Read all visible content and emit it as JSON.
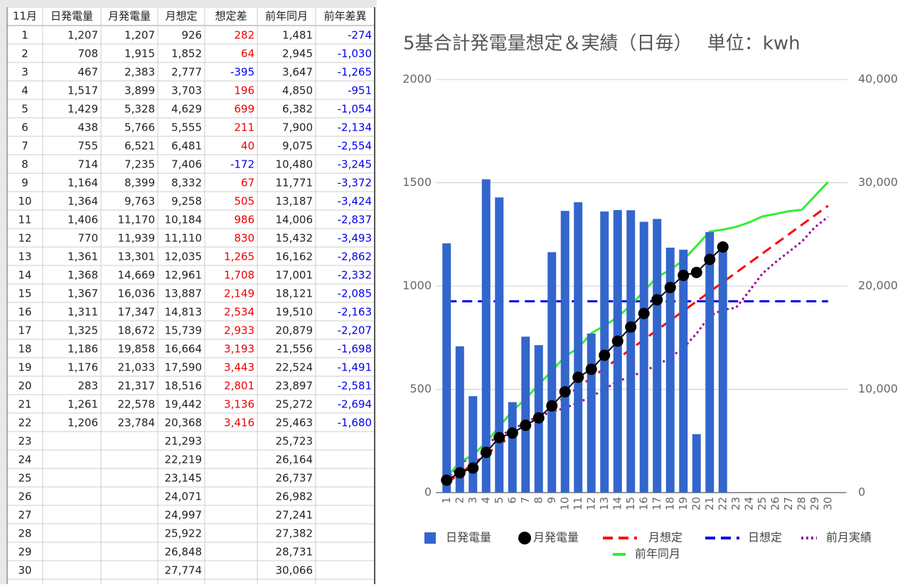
{
  "table": {
    "header": [
      "11月",
      "日発電量",
      "月発電量",
      "月想定",
      "想定差",
      "前年同月",
      "前年差異"
    ],
    "rows": [
      [
        "1",
        "1,207",
        "1,207",
        "926",
        "282",
        "1,481",
        "-274"
      ],
      [
        "2",
        "708",
        "1,915",
        "1,852",
        "64",
        "2,945",
        "-1,030"
      ],
      [
        "3",
        "467",
        "2,383",
        "2,777",
        "-395",
        "3,647",
        "-1,265"
      ],
      [
        "4",
        "1,517",
        "3,899",
        "3,703",
        "196",
        "4,850",
        "-951"
      ],
      [
        "5",
        "1,429",
        "5,328",
        "4,629",
        "699",
        "6,382",
        "-1,054"
      ],
      [
        "6",
        "438",
        "5,766",
        "5,555",
        "211",
        "7,900",
        "-2,134"
      ],
      [
        "7",
        "755",
        "6,521",
        "6,481",
        "40",
        "9,075",
        "-2,554"
      ],
      [
        "8",
        "714",
        "7,235",
        "7,406",
        "-172",
        "10,480",
        "-3,245"
      ],
      [
        "9",
        "1,164",
        "8,399",
        "8,332",
        "67",
        "11,771",
        "-3,372"
      ],
      [
        "10",
        "1,364",
        "9,763",
        "9,258",
        "505",
        "13,187",
        "-3,424"
      ],
      [
        "11",
        "1,406",
        "11,170",
        "10,184",
        "986",
        "14,006",
        "-2,837"
      ],
      [
        "12",
        "770",
        "11,939",
        "11,110",
        "830",
        "15,432",
        "-3,493"
      ],
      [
        "13",
        "1,361",
        "13,301",
        "12,035",
        "1,265",
        "16,162",
        "-2,862"
      ],
      [
        "14",
        "1,368",
        "14,669",
        "12,961",
        "1,708",
        "17,001",
        "-2,332"
      ],
      [
        "15",
        "1,367",
        "16,036",
        "13,887",
        "2,149",
        "18,121",
        "-2,085"
      ],
      [
        "16",
        "1,311",
        "17,347",
        "14,813",
        "2,534",
        "19,510",
        "-2,163"
      ],
      [
        "17",
        "1,325",
        "18,672",
        "15,739",
        "2,933",
        "20,879",
        "-2,207"
      ],
      [
        "18",
        "1,186",
        "19,858",
        "16,664",
        "3,193",
        "21,556",
        "-1,698"
      ],
      [
        "19",
        "1,176",
        "21,033",
        "17,590",
        "3,443",
        "22,524",
        "-1,491"
      ],
      [
        "20",
        "283",
        "21,317",
        "18,516",
        "2,801",
        "23,897",
        "-2,581"
      ],
      [
        "21",
        "1,261",
        "22,578",
        "19,442",
        "3,136",
        "25,272",
        "-2,694"
      ],
      [
        "22",
        "1,206",
        "23,784",
        "20,368",
        "3,416",
        "25,463",
        "-1,680"
      ],
      [
        "23",
        null,
        null,
        "21,293",
        null,
        "25,723",
        null
      ],
      [
        "24",
        null,
        null,
        "22,219",
        null,
        "26,164",
        null
      ],
      [
        "25",
        null,
        null,
        "23,145",
        null,
        "26,737",
        null
      ],
      [
        "26",
        null,
        null,
        "24,071",
        null,
        "26,982",
        null
      ],
      [
        "27",
        null,
        null,
        "24,997",
        null,
        "27,241",
        null
      ],
      [
        "28",
        null,
        null,
        "25,922",
        null,
        "27,382",
        null
      ],
      [
        "29",
        null,
        null,
        "26,848",
        null,
        "28,731",
        null
      ],
      [
        "30",
        null,
        null,
        "27,774",
        null,
        "30,066",
        null
      ]
    ]
  },
  "chart_data": {
    "type": "combo",
    "title": "5基合計発電量想定＆実績（日毎）　 単位：kwh",
    "categories": [
      "1",
      "2",
      "3",
      "4",
      "5",
      "6",
      "7",
      "8",
      "9",
      "10",
      "11",
      "12",
      "13",
      "14",
      "15",
      "16",
      "17",
      "18",
      "19",
      "20",
      "21",
      "22",
      "23",
      "24",
      "25",
      "26",
      "27",
      "28",
      "29",
      "30"
    ],
    "ylim": [
      0,
      2000
    ],
    "yticks": [
      0,
      500,
      1000,
      1500,
      2000
    ],
    "y2lim": [
      0,
      40000
    ],
    "y2ticks": [
      0,
      {
        "value": 10000,
        "label": "10,000"
      },
      {
        "value": 20000,
        "label": "20,000"
      },
      {
        "value": 30000,
        "label": "30,000"
      },
      {
        "value": 40000,
        "label": "40,000"
      }
    ],
    "grid": true,
    "legend": "bottom",
    "series": [
      {
        "name": "日発電量",
        "type": "bar",
        "color": "#3366cc",
        "values": [
          1207,
          708,
          467,
          1517,
          1429,
          438,
          755,
          714,
          1164,
          1364,
          1406,
          770,
          1361,
          1368,
          1367,
          1311,
          1325,
          1186,
          1176,
          283,
          1261,
          1206,
          null,
          null,
          null,
          null,
          null,
          null,
          null,
          null
        ]
      },
      {
        "name": "月発電量",
        "type": "line",
        "marker": "circle",
        "color": "#000000",
        "axis": "y2",
        "values": [
          1207,
          1915,
          2383,
          3899,
          5328,
          5766,
          6521,
          7235,
          8399,
          9763,
          11170,
          11939,
          13301,
          14669,
          16036,
          17347,
          18672,
          19858,
          21033,
          21317,
          22578,
          23784,
          null,
          null,
          null,
          null,
          null,
          null,
          null,
          null
        ]
      },
      {
        "name": "月想定",
        "type": "line",
        "dash": "dashed",
        "color": "#ff0000",
        "axis": "y2",
        "values": [
          926,
          1852,
          2777,
          3703,
          4629,
          5555,
          6481,
          7406,
          8332,
          9258,
          10184,
          11110,
          12035,
          12961,
          13887,
          14813,
          15739,
          16664,
          17590,
          18516,
          19442,
          20368,
          21293,
          22219,
          23145,
          24071,
          24997,
          25922,
          26848,
          27774
        ]
      },
      {
        "name": "日想定",
        "type": "line",
        "dash": "dashed",
        "color": "#0000dd",
        "values": [
          926,
          926,
          926,
          926,
          926,
          926,
          926,
          926,
          926,
          926,
          926,
          926,
          926,
          926,
          926,
          926,
          926,
          926,
          926,
          926,
          926,
          926,
          926,
          926,
          926,
          926,
          926,
          926,
          926,
          926
        ]
      },
      {
        "name": "前月実績",
        "type": "line",
        "dash": "dotted",
        "color": "#990099",
        "axis": "y2",
        "values": [
          1300,
          2600,
          3800,
          4700,
          5500,
          6100,
          6800,
          7400,
          7800,
          8200,
          8700,
          9300,
          10000,
          10800,
          11200,
          11800,
          12300,
          13100,
          14000,
          15400,
          17100,
          17700,
          17900,
          19500,
          21200,
          22300,
          23300,
          24300,
          25700,
          26700
        ]
      },
      {
        "name": "前年同月",
        "type": "line",
        "color": "#33ee33",
        "axis": "y2",
        "values": [
          1481,
          2945,
          3647,
          4850,
          6382,
          7900,
          9075,
          10480,
          11771,
          13187,
          14006,
          15432,
          16162,
          17001,
          18121,
          19510,
          20879,
          21556,
          22524,
          23897,
          25272,
          25463,
          25723,
          26164,
          26737,
          26982,
          27241,
          27382,
          28731,
          30066
        ]
      }
    ]
  }
}
